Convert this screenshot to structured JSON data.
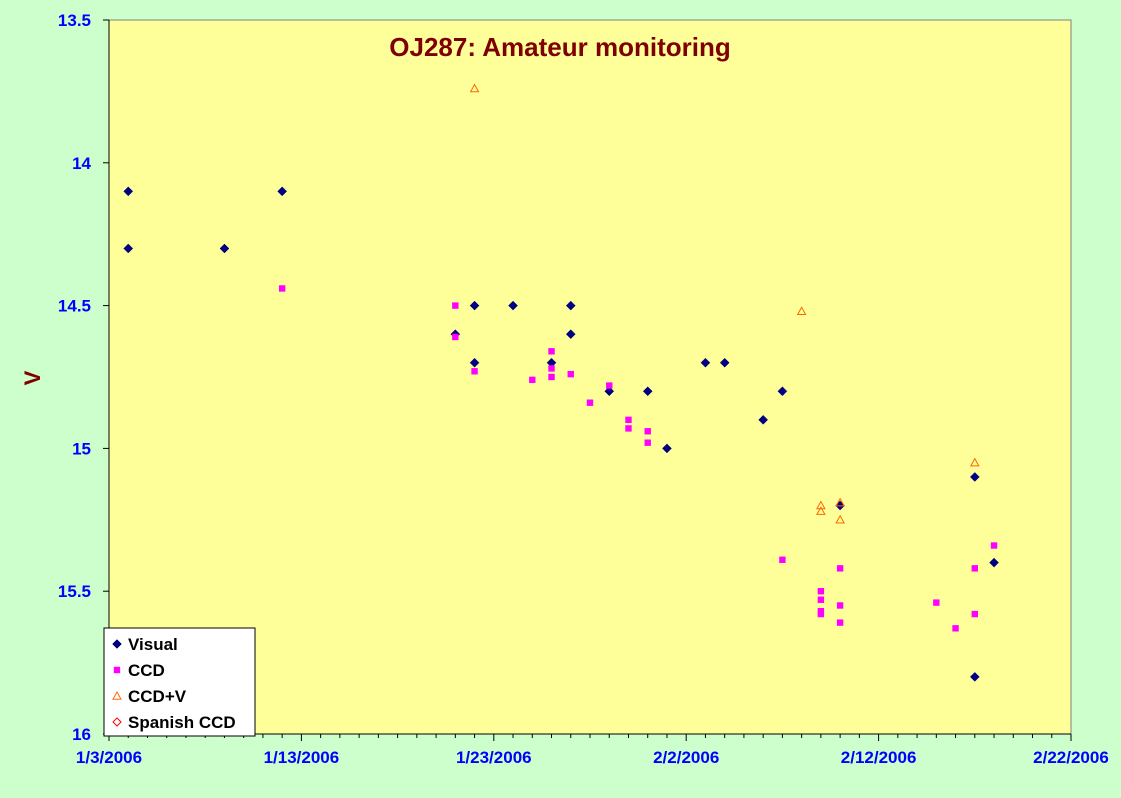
{
  "colors": {
    "page_bg": "#ccffcc",
    "plot_bg": "#ffff99",
    "title": "#7f0000",
    "tick_labels": "#0000ff",
    "visual": "#000080",
    "ccd": "#ff00ff",
    "ccd_v": "#ff6600",
    "spanish_ccd": "#ff0000"
  },
  "chart_data": {
    "type": "scatter",
    "title": "OJ287: Amateur monitoring",
    "xlabel": "",
    "ylabel": "V",
    "x_axis": {
      "type": "date",
      "range": [
        "2006-01-03",
        "2006-02-22"
      ],
      "tick_labels": [
        "1/3/2006",
        "1/13/2006",
        "1/23/2006",
        "2/2/2006",
        "2/12/2006",
        "2/22/2006"
      ],
      "minor_tick": "1 day"
    },
    "y_axis": {
      "range": [
        13.5,
        16
      ],
      "reversed": true,
      "tick_labels": [
        "13.5",
        "14",
        "14.5",
        "15",
        "15.5",
        "16"
      ]
    },
    "grid": false,
    "legend_position": "bottom-left",
    "series": [
      {
        "name": "Visual",
        "marker": "diamond",
        "color": "#000080",
        "points": [
          [
            "2006-01-04",
            14.1
          ],
          [
            "2006-01-04",
            14.3
          ],
          [
            "2006-01-09",
            14.3
          ],
          [
            "2006-01-12",
            14.1
          ],
          [
            "2006-01-21",
            14.6
          ],
          [
            "2006-01-22",
            14.5
          ],
          [
            "2006-01-22",
            14.7
          ],
          [
            "2006-01-24",
            14.5
          ],
          [
            "2006-01-26",
            14.7
          ],
          [
            "2006-01-27",
            14.5
          ],
          [
            "2006-01-27",
            14.6
          ],
          [
            "2006-01-29",
            14.8
          ],
          [
            "2006-01-31",
            14.8
          ],
          [
            "2006-02-01",
            15.0
          ],
          [
            "2006-02-03",
            14.7
          ],
          [
            "2006-02-04",
            14.7
          ],
          [
            "2006-02-06",
            14.9
          ],
          [
            "2006-02-07",
            14.8
          ],
          [
            "2006-02-10",
            15.2
          ],
          [
            "2006-02-17",
            15.1
          ],
          [
            "2006-02-18",
            15.4
          ],
          [
            "2006-02-17",
            15.8
          ]
        ]
      },
      {
        "name": "CCD",
        "marker": "square",
        "color": "#ff00ff",
        "points": [
          [
            "2006-01-12",
            14.44
          ],
          [
            "2006-01-21",
            14.61
          ],
          [
            "2006-01-21",
            14.5
          ],
          [
            "2006-01-22",
            14.73
          ],
          [
            "2006-01-25",
            14.76
          ],
          [
            "2006-01-26",
            14.66
          ],
          [
            "2006-01-26",
            14.72
          ],
          [
            "2006-01-26",
            14.75
          ],
          [
            "2006-01-27",
            14.74
          ],
          [
            "2006-01-28",
            14.84
          ],
          [
            "2006-01-29",
            14.78
          ],
          [
            "2006-01-30",
            14.9
          ],
          [
            "2006-01-30",
            14.93
          ],
          [
            "2006-01-31",
            14.94
          ],
          [
            "2006-01-31",
            14.98
          ],
          [
            "2006-02-07",
            15.39
          ],
          [
            "2006-02-09",
            15.53
          ],
          [
            "2006-02-09",
            15.5
          ],
          [
            "2006-02-09",
            15.57
          ],
          [
            "2006-02-09",
            15.58
          ],
          [
            "2006-02-10",
            15.42
          ],
          [
            "2006-02-10",
            15.55
          ],
          [
            "2006-02-10",
            15.61
          ],
          [
            "2006-02-15",
            15.54
          ],
          [
            "2006-02-16",
            15.63
          ],
          [
            "2006-02-17",
            15.42
          ],
          [
            "2006-02-17",
            15.58
          ],
          [
            "2006-02-18",
            15.34
          ]
        ]
      },
      {
        "name": "CCD+V",
        "marker": "triangle",
        "color": "#ff6600",
        "points": [
          [
            "2006-01-22",
            13.74
          ],
          [
            "2006-02-08",
            14.52
          ],
          [
            "2006-02-09",
            15.2
          ],
          [
            "2006-02-09",
            15.22
          ],
          [
            "2006-02-10",
            15.19
          ],
          [
            "2006-02-10",
            15.25
          ],
          [
            "2006-02-17",
            15.05
          ]
        ]
      },
      {
        "name": "Spanish CCD",
        "marker": "diamond-open",
        "color": "#ff0000",
        "points": []
      }
    ]
  }
}
